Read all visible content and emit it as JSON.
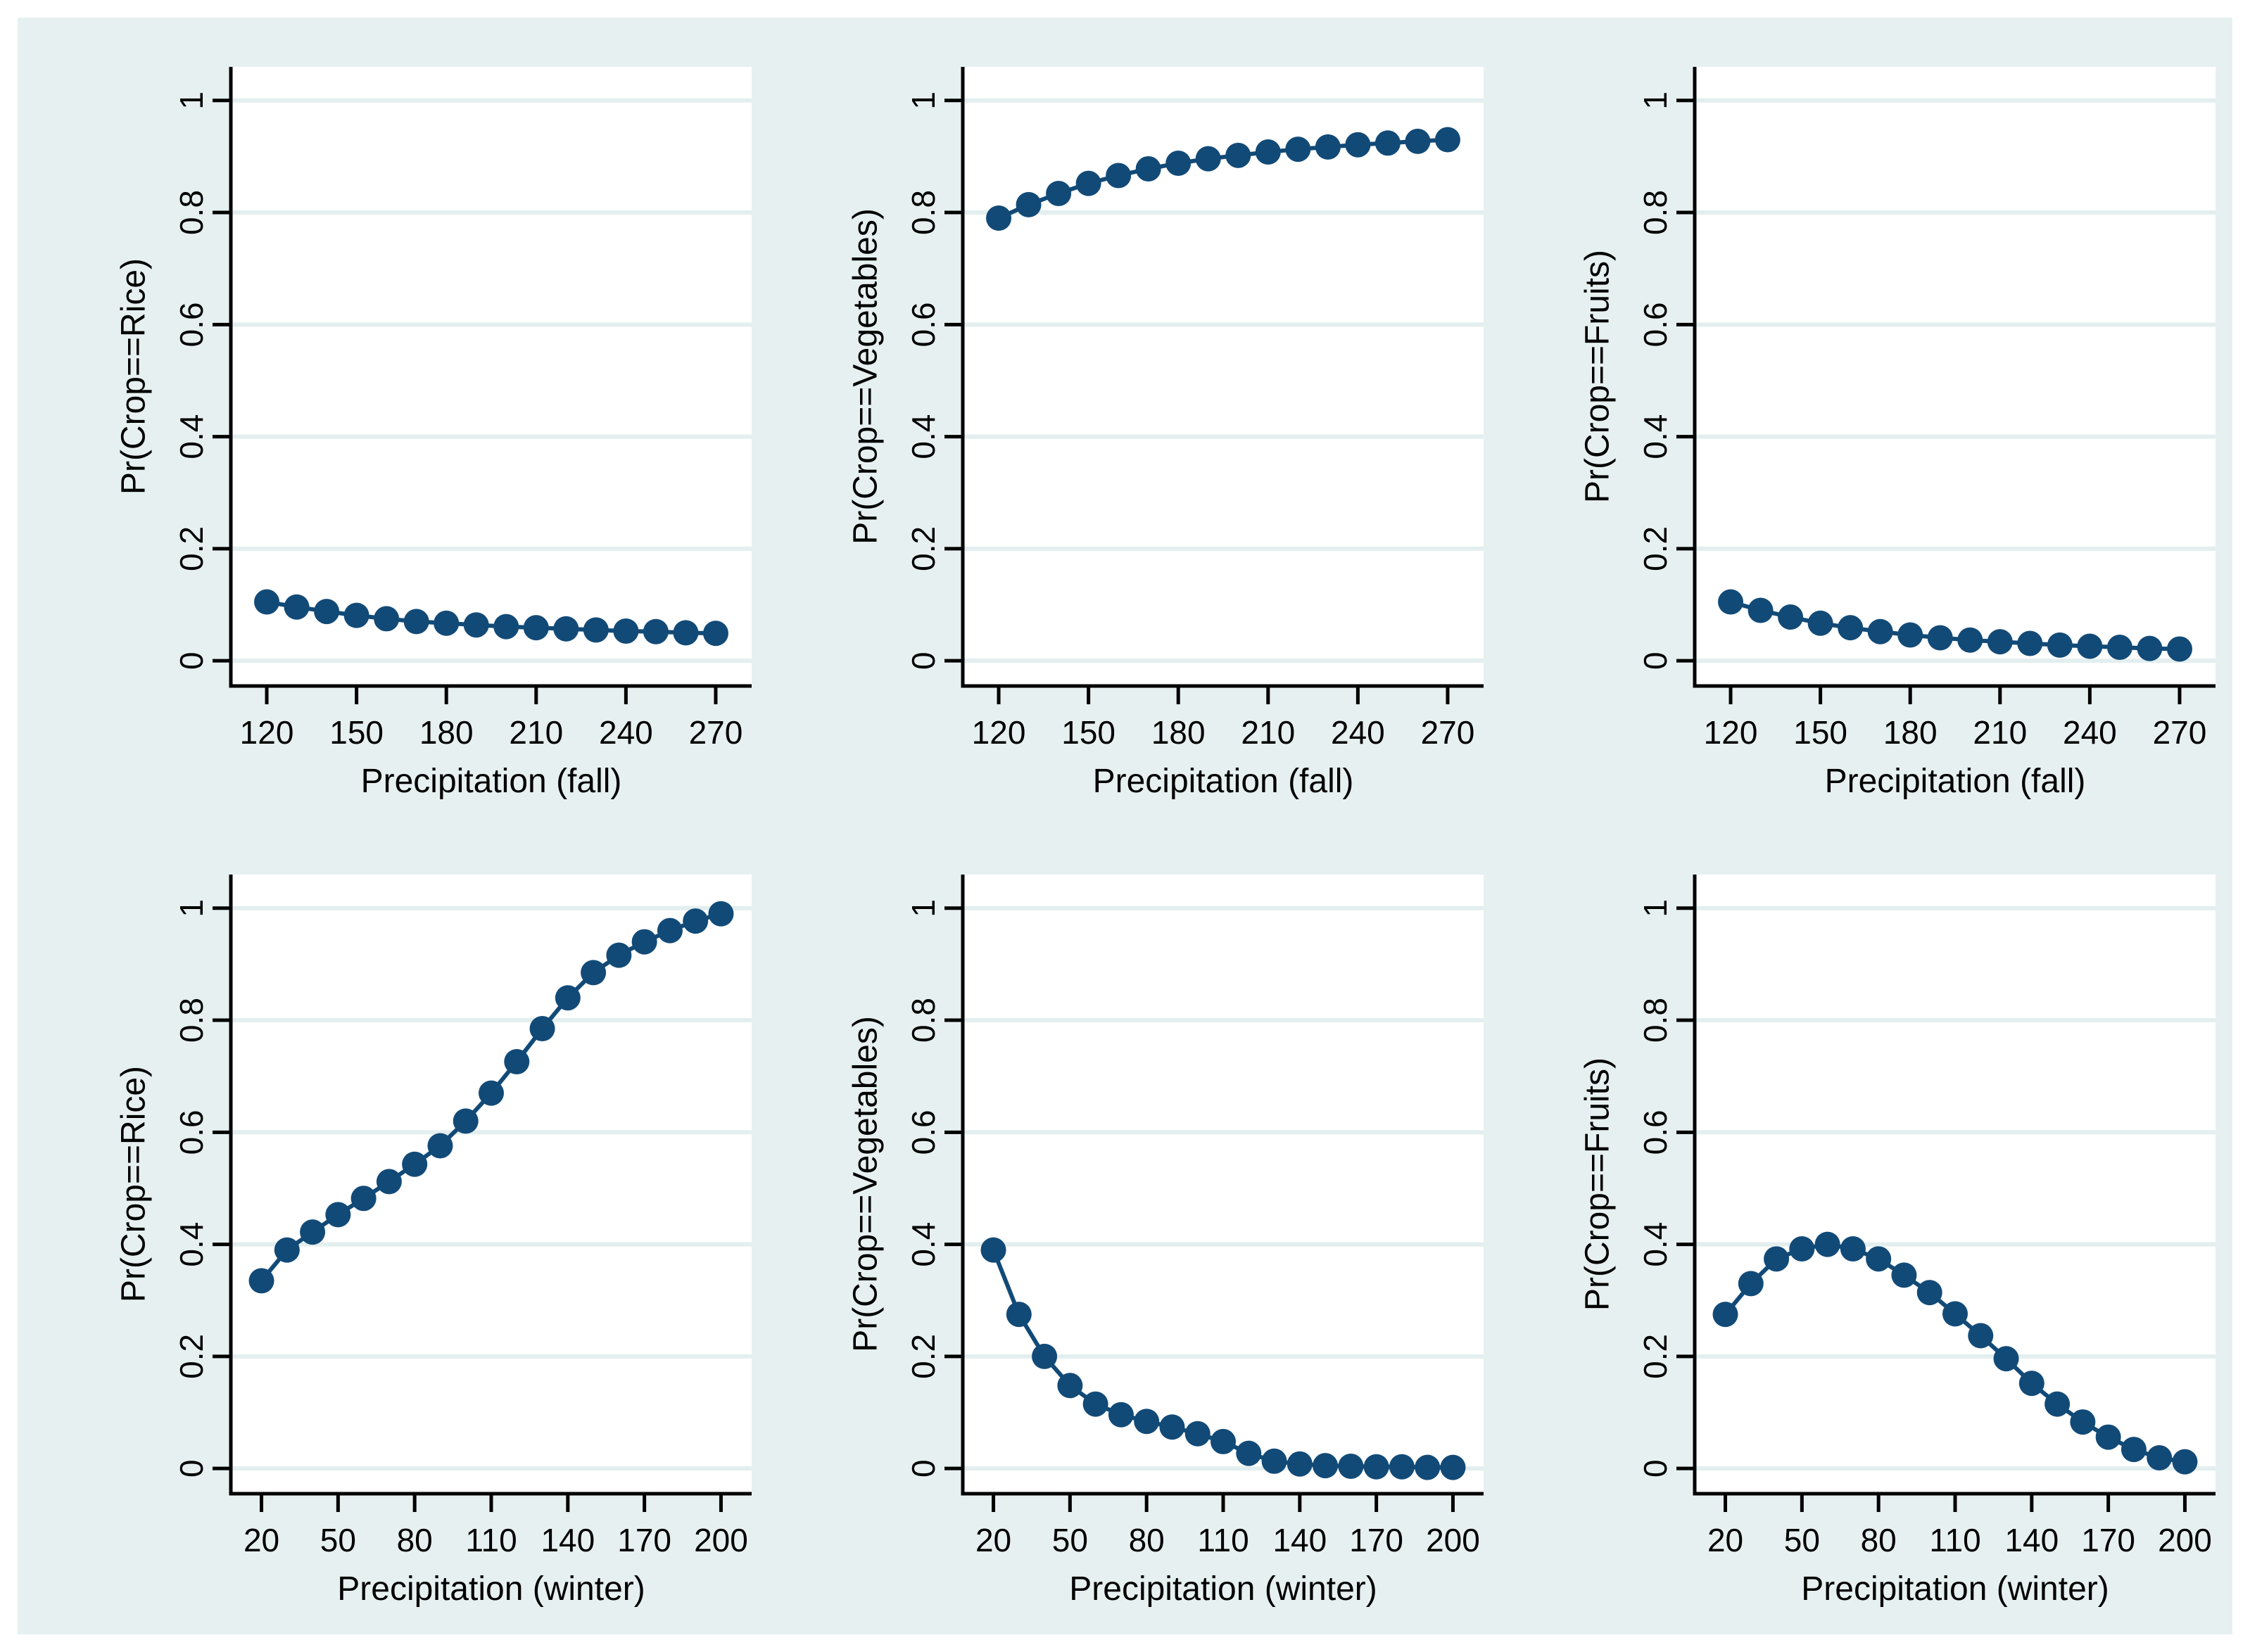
{
  "style": {
    "canvas_bg": "#e7f0f1",
    "plot_bg": "#ffffff",
    "grid_color": "#e3eeef",
    "axis_color": "#000000",
    "text_color": "#000000",
    "series_color": "#124a77"
  },
  "chart_data": [
    {
      "type": "line",
      "ylabel": "Pr(Crop==Rice)",
      "xlabel": "Precipitation (fall)",
      "xlim": [
        108,
        282
      ],
      "ylim": [
        -0.045,
        1.06
      ],
      "grid": true,
      "legend": "none",
      "xticks": [
        120,
        150,
        180,
        210,
        240,
        270
      ],
      "xtick_labels": [
        "120",
        "150",
        "180",
        "210",
        "240",
        "270"
      ],
      "yticks": [
        0,
        0.2,
        0.4,
        0.6,
        0.8,
        1
      ],
      "ytick_labels": [
        "0",
        "0.2",
        "0.4",
        "0.6",
        "0.8",
        "1"
      ],
      "x": [
        120,
        130,
        140,
        150,
        160,
        170,
        180,
        190,
        200,
        210,
        220,
        230,
        240,
        250,
        260,
        270
      ],
      "y": [
        0.105,
        0.096,
        0.088,
        0.081,
        0.075,
        0.07,
        0.067,
        0.064,
        0.061,
        0.059,
        0.057,
        0.055,
        0.053,
        0.052,
        0.05,
        0.049
      ]
    },
    {
      "type": "line",
      "ylabel": "Pr(Crop==Vegetables)",
      "xlabel": "Precipitation (fall)",
      "xlim": [
        108,
        282
      ],
      "ylim": [
        -0.045,
        1.06
      ],
      "grid": true,
      "legend": "none",
      "xticks": [
        120,
        150,
        180,
        210,
        240,
        270
      ],
      "xtick_labels": [
        "120",
        "150",
        "180",
        "210",
        "240",
        "270"
      ],
      "yticks": [
        0,
        0.2,
        0.4,
        0.6,
        0.8,
        1
      ],
      "ytick_labels": [
        "0",
        "0.2",
        "0.4",
        "0.6",
        "0.8",
        "1"
      ],
      "x": [
        120,
        130,
        140,
        150,
        160,
        170,
        180,
        190,
        200,
        210,
        220,
        230,
        240,
        250,
        260,
        270
      ],
      "y": [
        0.79,
        0.814,
        0.834,
        0.852,
        0.866,
        0.878,
        0.888,
        0.896,
        0.902,
        0.908,
        0.913,
        0.917,
        0.921,
        0.924,
        0.927,
        0.93
      ]
    },
    {
      "type": "line",
      "ylabel": "Pr(Crop==Fruits)",
      "xlabel": "Precipitation (fall)",
      "xlim": [
        108,
        282
      ],
      "ylim": [
        -0.045,
        1.06
      ],
      "grid": true,
      "legend": "none",
      "xticks": [
        120,
        150,
        180,
        210,
        240,
        270
      ],
      "xtick_labels": [
        "120",
        "150",
        "180",
        "210",
        "240",
        "270"
      ],
      "yticks": [
        0,
        0.2,
        0.4,
        0.6,
        0.8,
        1
      ],
      "ytick_labels": [
        "0",
        "0.2",
        "0.4",
        "0.6",
        "0.8",
        "1"
      ],
      "x": [
        120,
        130,
        140,
        150,
        160,
        170,
        180,
        190,
        200,
        210,
        220,
        230,
        240,
        250,
        260,
        270
      ],
      "y": [
        0.105,
        0.09,
        0.078,
        0.067,
        0.059,
        0.052,
        0.046,
        0.041,
        0.037,
        0.034,
        0.031,
        0.028,
        0.026,
        0.024,
        0.022,
        0.021
      ]
    },
    {
      "type": "line",
      "ylabel": "Pr(Crop==Rice)",
      "xlabel": "Precipitation (winter)",
      "xlim": [
        8,
        212
      ],
      "ylim": [
        -0.045,
        1.06
      ],
      "grid": true,
      "legend": "none",
      "xticks": [
        20,
        50,
        80,
        110,
        140,
        170,
        200
      ],
      "xtick_labels": [
        "20",
        "50",
        "80",
        "110",
        "140",
        "170",
        "200"
      ],
      "yticks": [
        0,
        0.2,
        0.4,
        0.6,
        0.8,
        1
      ],
      "ytick_labels": [
        "0",
        "0.2",
        "0.4",
        "0.6",
        "0.8",
        "1"
      ],
      "x": [
        20,
        30,
        40,
        50,
        60,
        70,
        80,
        90,
        100,
        110,
        120,
        130,
        140,
        150,
        160,
        170,
        180,
        190,
        200
      ],
      "y": [
        0.335,
        0.39,
        0.422,
        0.453,
        0.482,
        0.512,
        0.543,
        0.576,
        0.62,
        0.67,
        0.726,
        0.785,
        0.84,
        0.885,
        0.916,
        0.94,
        0.96,
        0.977,
        0.99
      ]
    },
    {
      "type": "line",
      "ylabel": "Pr(Crop==Vegetables)",
      "xlabel": "Precipitation (winter)",
      "xlim": [
        8,
        212
      ],
      "ylim": [
        -0.045,
        1.06
      ],
      "grid": true,
      "legend": "none",
      "xticks": [
        20,
        50,
        80,
        110,
        140,
        170,
        200
      ],
      "xtick_labels": [
        "20",
        "50",
        "80",
        "110",
        "140",
        "170",
        "200"
      ],
      "yticks": [
        0,
        0.2,
        0.4,
        0.6,
        0.8,
        1
      ],
      "ytick_labels": [
        "0",
        "0.2",
        "0.4",
        "0.6",
        "0.8",
        "1"
      ],
      "x": [
        20,
        30,
        40,
        50,
        60,
        70,
        80,
        90,
        100,
        110,
        120,
        130,
        140,
        150,
        160,
        170,
        180,
        190,
        200
      ],
      "y": [
        0.39,
        0.275,
        0.2,
        0.148,
        0.115,
        0.096,
        0.084,
        0.074,
        0.062,
        0.048,
        0.027,
        0.013,
        0.008,
        0.005,
        0.004,
        0.003,
        0.003,
        0.002,
        0.002
      ]
    },
    {
      "type": "line",
      "ylabel": "Pr(Crop==Fruits)",
      "xlabel": "Precipitation (winter)",
      "xlim": [
        8,
        212
      ],
      "ylim": [
        -0.045,
        1.06
      ],
      "grid": true,
      "legend": "none",
      "xticks": [
        20,
        50,
        80,
        110,
        140,
        170,
        200
      ],
      "xtick_labels": [
        "20",
        "50",
        "80",
        "110",
        "140",
        "170",
        "200"
      ],
      "yticks": [
        0,
        0.2,
        0.4,
        0.6,
        0.8,
        1
      ],
      "ytick_labels": [
        "0",
        "0.2",
        "0.4",
        "0.6",
        "0.8",
        "1"
      ],
      "x": [
        20,
        30,
        40,
        50,
        60,
        70,
        80,
        90,
        100,
        110,
        120,
        130,
        140,
        150,
        160,
        170,
        180,
        190,
        200
      ],
      "y": [
        0.275,
        0.33,
        0.374,
        0.392,
        0.4,
        0.392,
        0.374,
        0.345,
        0.314,
        0.276,
        0.237,
        0.196,
        0.152,
        0.115,
        0.083,
        0.056,
        0.034,
        0.019,
        0.012
      ]
    }
  ]
}
